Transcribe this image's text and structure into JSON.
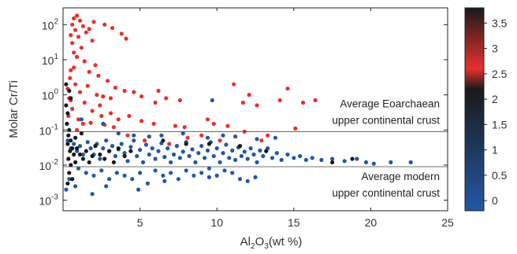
{
  "chart_data": {
    "type": "scatter",
    "title": "",
    "xlabel": "Al2O3(wt %)",
    "xlabel_parts": {
      "pre": "Al",
      "sub1": "2",
      "mid": "O",
      "sub2": "3",
      "post": "(wt %)"
    },
    "ylabel": "Molar Cr/Ti",
    "x_ticks": [
      5,
      10,
      15,
      20,
      25
    ],
    "xlim": [
      0,
      25
    ],
    "y_scale": "log",
    "ylim": [
      0.0005,
      300
    ],
    "y_ticks": [
      {
        "value": 0.001,
        "base": "10",
        "exp": "-3"
      },
      {
        "value": 0.01,
        "base": "10",
        "exp": "-2"
      },
      {
        "value": 0.1,
        "base": "10",
        "exp": "-1"
      },
      {
        "value": 1,
        "base": "10",
        "exp": "0"
      },
      {
        "value": 10,
        "base": "10",
        "exp": "1"
      },
      {
        "value": 100,
        "base": "10",
        "exp": "2"
      }
    ],
    "reference_lines": [
      {
        "y": 0.09,
        "label_lines": [
          "Average Eoarchaean",
          "upper continental crust"
        ],
        "label_position": "above-right"
      },
      {
        "y": 0.009,
        "label_lines": [
          "Average modern",
          "upper continental crust"
        ],
        "label_position": "below-right"
      }
    ],
    "colorbar": {
      "ticks": [
        "0",
        "0.5",
        "1",
        "1.5",
        "2",
        "2.5",
        "3",
        "3.5"
      ],
      "range": [
        -0.2,
        3.8
      ],
      "colors": {
        "low": "#2457a6",
        "mid": "#e8302f",
        "high": "#1a1a1a"
      }
    },
    "series": [
      {
        "color": "#e8302f",
        "points": [
          [
            0.7,
            150
          ],
          [
            0.9,
            180
          ],
          [
            1.1,
            130
          ],
          [
            0.6,
            100
          ],
          [
            1.3,
            90
          ],
          [
            0.8,
            70
          ],
          [
            1.5,
            60
          ],
          [
            0.5,
            50
          ],
          [
            1.0,
            45
          ],
          [
            1.7,
            75
          ],
          [
            2.0,
            120
          ],
          [
            2.7,
            100
          ],
          [
            3.2,
            80
          ],
          [
            3.8,
            55
          ],
          [
            4.1,
            40
          ],
          [
            1.9,
            35
          ],
          [
            0.6,
            30
          ],
          [
            1.2,
            22
          ],
          [
            0.7,
            16
          ],
          [
            0.9,
            12
          ],
          [
            1.4,
            9
          ],
          [
            2.1,
            7
          ],
          [
            0.5,
            5
          ],
          [
            1.7,
            4.5
          ],
          [
            2.3,
            3.5
          ],
          [
            2.9,
            2.5
          ],
          [
            0.8,
            2.0
          ],
          [
            3.4,
            1.6
          ],
          [
            1.1,
            1.2
          ],
          [
            2.6,
            0.9
          ],
          [
            3.1,
            0.8
          ],
          [
            0.5,
            0.7
          ],
          [
            4.0,
            1.3
          ],
          [
            4.6,
            1.2
          ],
          [
            5.1,
            0.9
          ],
          [
            6.2,
            1.3
          ],
          [
            6.7,
            0.8
          ],
          [
            7.6,
            0.7
          ],
          [
            1.4,
            0.6
          ],
          [
            2.4,
            0.5
          ],
          [
            0.6,
            0.4
          ],
          [
            1.9,
            0.35
          ],
          [
            3.1,
            0.3
          ],
          [
            2.5,
            0.25
          ],
          [
            4.3,
            0.25
          ],
          [
            1.0,
            0.2
          ],
          [
            3.6,
            0.2
          ],
          [
            1.8,
            0.16
          ],
          [
            2.7,
            0.14
          ],
          [
            5.1,
            0.18
          ],
          [
            5.9,
            0.15
          ],
          [
            7.3,
            0.13
          ],
          [
            7.9,
            0.12
          ],
          [
            9.4,
            0.2
          ],
          [
            9.8,
            0.15
          ],
          [
            11.1,
            2.0
          ],
          [
            11.7,
            0.6
          ],
          [
            12.1,
            1.0
          ],
          [
            12.6,
            0.5
          ],
          [
            14.1,
            0.7
          ],
          [
            14.6,
            1.5
          ],
          [
            15.6,
            0.6
          ],
          [
            16.4,
            0.7
          ],
          [
            10.7,
            0.13
          ],
          [
            11.8,
            0.09
          ],
          [
            13.3,
            0.07
          ],
          [
            12.9,
            0.05
          ],
          [
            15.1,
            0.11
          ],
          [
            10.2,
            0.05
          ],
          [
            9.0,
            0.07
          ],
          [
            8.1,
            0.06
          ],
          [
            5.3,
            0.05
          ],
          [
            4.2,
            0.07
          ],
          [
            6.9,
            0.04
          ],
          [
            0.4,
            0.8
          ],
          [
            0.3,
            1.5
          ],
          [
            0.45,
            3.0
          ],
          [
            0.35,
            0.25
          ],
          [
            2.2,
            1.0
          ],
          [
            1.6,
            1.8
          ],
          [
            0.9,
            0.1
          ],
          [
            1.3,
            0.15
          ],
          [
            3.3,
            0.12
          ],
          [
            6.0,
            0.6
          ],
          [
            0.7,
            6
          ]
        ]
      },
      {
        "color": "#2457a6",
        "points": [
          [
            0.3,
            0.05
          ],
          [
            0.5,
            0.03
          ],
          [
            0.7,
            0.04
          ],
          [
            0.9,
            0.025
          ],
          [
            1.1,
            0.035
          ],
          [
            1.3,
            0.02
          ],
          [
            1.6,
            0.045
          ],
          [
            1.8,
            0.03
          ],
          [
            2.0,
            0.02
          ],
          [
            2.2,
            0.04
          ],
          [
            2.4,
            0.015
          ],
          [
            2.6,
            0.03
          ],
          [
            2.8,
            0.05
          ],
          [
            3.0,
            0.025
          ],
          [
            3.2,
            0.035
          ],
          [
            3.4,
            0.018
          ],
          [
            3.6,
            0.028
          ],
          [
            3.8,
            0.04
          ],
          [
            4.0,
            0.022
          ],
          [
            4.2,
            0.013
          ],
          [
            4.4,
            0.033
          ],
          [
            4.6,
            0.05
          ],
          [
            4.8,
            0.018
          ],
          [
            5.0,
            0.027
          ],
          [
            5.2,
            0.012
          ],
          [
            5.4,
            0.038
          ],
          [
            5.6,
            0.02
          ],
          [
            5.8,
            0.03
          ],
          [
            6.0,
            0.015
          ],
          [
            6.2,
            0.025
          ],
          [
            6.4,
            0.042
          ],
          [
            6.6,
            0.017
          ],
          [
            6.8,
            0.03
          ],
          [
            7.0,
            0.012
          ],
          [
            7.2,
            0.02
          ],
          [
            7.4,
            0.035
          ],
          [
            7.6,
            0.016
          ],
          [
            7.8,
            0.024
          ],
          [
            8.0,
            0.045
          ],
          [
            8.2,
            0.018
          ],
          [
            8.4,
            0.028
          ],
          [
            8.6,
            0.012
          ],
          [
            8.8,
            0.022
          ],
          [
            9.0,
            0.035
          ],
          [
            9.2,
            0.016
          ],
          [
            9.4,
            0.026
          ],
          [
            9.6,
            0.045
          ],
          [
            9.8,
            0.018
          ],
          [
            10.0,
            0.03
          ],
          [
            10.2,
            0.012
          ],
          [
            10.4,
            0.022
          ],
          [
            10.6,
            0.038
          ],
          [
            10.8,
            0.016
          ],
          [
            11.0,
            0.026
          ],
          [
            11.2,
            0.014
          ],
          [
            11.4,
            0.032
          ],
          [
            11.6,
            0.018
          ],
          [
            11.8,
            0.024
          ],
          [
            12.0,
            0.015
          ],
          [
            12.2,
            0.03
          ],
          [
            12.4,
            0.02
          ],
          [
            12.6,
            0.012
          ],
          [
            12.8,
            0.026
          ],
          [
            13.0,
            0.018
          ],
          [
            13.3,
            0.03
          ],
          [
            13.6,
            0.016
          ],
          [
            13.9,
            0.022
          ],
          [
            14.2,
            0.014
          ],
          [
            14.6,
            0.02
          ],
          [
            15.0,
            0.016
          ],
          [
            15.4,
            0.018
          ],
          [
            15.8,
            0.014
          ],
          [
            16.2,
            0.016
          ],
          [
            16.8,
            0.014
          ],
          [
            17.5,
            0.015
          ],
          [
            18.3,
            0.013
          ],
          [
            19.1,
            0.015
          ],
          [
            19.7,
            0.012
          ],
          [
            20.2,
            0.011
          ],
          [
            21.3,
            0.012
          ],
          [
            22.6,
            0.012
          ],
          [
            1.0,
            0.008
          ],
          [
            1.5,
            0.006
          ],
          [
            2.0,
            0.005
          ],
          [
            2.5,
            0.007
          ],
          [
            3.0,
            0.004
          ],
          [
            3.5,
            0.006
          ],
          [
            4.0,
            0.005
          ],
          [
            4.5,
            0.004
          ],
          [
            5.0,
            0.006
          ],
          [
            5.5,
            0.003
          ],
          [
            6.0,
            0.007
          ],
          [
            6.5,
            0.005
          ],
          [
            7.0,
            0.006
          ],
          [
            7.5,
            0.004
          ],
          [
            8.0,
            0.007
          ],
          [
            8.5,
            0.005
          ],
          [
            9.0,
            0.006
          ],
          [
            9.5,
            0.008
          ],
          [
            10.0,
            0.005
          ],
          [
            10.5,
            0.007
          ],
          [
            11.0,
            0.006
          ],
          [
            11.5,
            0.004
          ],
          [
            12.0,
            0.0035
          ],
          [
            12.5,
            0.0045
          ],
          [
            0.4,
            0.004
          ],
          [
            0.8,
            0.0025
          ],
          [
            2.8,
            0.0025
          ],
          [
            4.9,
            0.002
          ],
          [
            1.9,
            0.0015
          ],
          [
            6.6,
            0.0035
          ],
          [
            9.5,
            0.0045
          ],
          [
            0.2,
            0.002
          ],
          [
            1.2,
            0.2
          ],
          [
            2.6,
            0.15
          ],
          [
            3.6,
            0.08
          ],
          [
            4.6,
            0.07
          ],
          [
            5.6,
            0.065
          ],
          [
            6.4,
            0.07
          ],
          [
            7.8,
            0.08
          ],
          [
            9.4,
            0.06
          ],
          [
            10.4,
            0.07
          ],
          [
            11.2,
            0.065
          ],
          [
            12.6,
            0.055
          ],
          [
            13.8,
            0.06
          ],
          [
            9.7,
            0.7
          ]
        ]
      },
      {
        "color": "#1a1a1a",
        "points": [
          [
            0.2,
            0.5
          ],
          [
            0.3,
            0.3
          ],
          [
            0.25,
            0.15
          ],
          [
            0.4,
            0.1
          ],
          [
            0.35,
            0.07
          ],
          [
            0.5,
            0.05
          ],
          [
            0.3,
            0.04
          ],
          [
            0.6,
            0.03
          ],
          [
            0.45,
            0.025
          ],
          [
            0.7,
            0.02
          ],
          [
            0.35,
            0.015
          ],
          [
            0.8,
            0.012
          ],
          [
            0.5,
            0.01
          ],
          [
            0.9,
            0.03
          ],
          [
            1.1,
            0.02
          ],
          [
            1.3,
            0.015
          ],
          [
            1.5,
            0.025
          ],
          [
            1.7,
            0.012
          ],
          [
            1.9,
            0.018
          ],
          [
            2.1,
            0.035
          ],
          [
            2.4,
            0.02
          ],
          [
            2.7,
            0.015
          ],
          [
            3.0,
            0.025
          ],
          [
            3.3,
            0.012
          ],
          [
            3.6,
            0.03
          ],
          [
            4.0,
            0.018
          ],
          [
            4.4,
            0.025
          ],
          [
            0.4,
            0.006
          ],
          [
            0.6,
            0.004
          ],
          [
            0.3,
            0.003
          ],
          [
            0.5,
            0.8
          ],
          [
            0.4,
            1.3
          ],
          [
            0.2,
            2.0
          ],
          [
            6.5,
            0.05
          ],
          [
            8.0,
            0.04
          ],
          [
            9.5,
            0.04
          ],
          [
            11.5,
            0.035
          ],
          [
            13.2,
            0.025
          ],
          [
            17.5,
            0.012
          ],
          [
            18.8,
            0.015
          ],
          [
            0.8,
            0.06
          ],
          [
            1.2,
            0.08
          ]
        ]
      }
    ]
  }
}
